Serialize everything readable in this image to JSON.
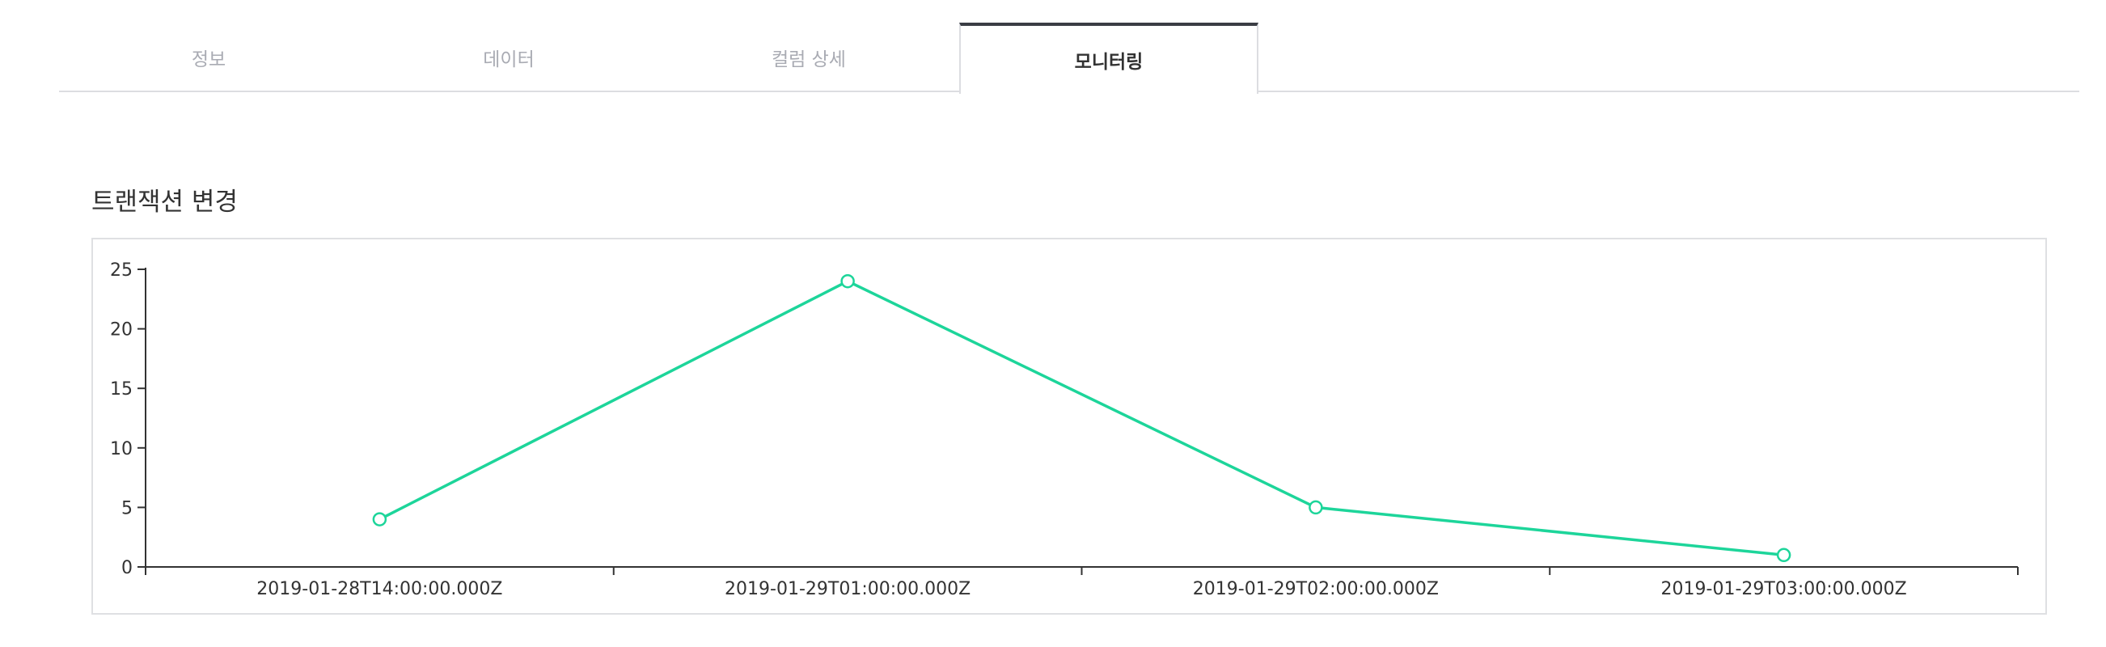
{
  "tabs": [
    {
      "label": "정보",
      "active": false
    },
    {
      "label": "데이터",
      "active": false
    },
    {
      "label": "컬럼 상세",
      "active": false
    },
    {
      "label": "모니터링",
      "active": true
    }
  ],
  "section": {
    "title": "트랜잭션 변경"
  },
  "colors": {
    "line": "#1dd59a",
    "axis": "#333333",
    "frame": "#dfe0e3"
  },
  "chart_data": {
    "type": "line",
    "categories": [
      "2019-01-28T14:00:00.000Z",
      "2019-01-29T01:00:00.000Z",
      "2019-01-29T02:00:00.000Z",
      "2019-01-29T03:00:00.000Z"
    ],
    "values": [
      4,
      24,
      5,
      1
    ],
    "yticks": [
      0,
      5,
      10,
      15,
      20,
      25
    ],
    "ylim": [
      0,
      25
    ],
    "grid": false
  }
}
